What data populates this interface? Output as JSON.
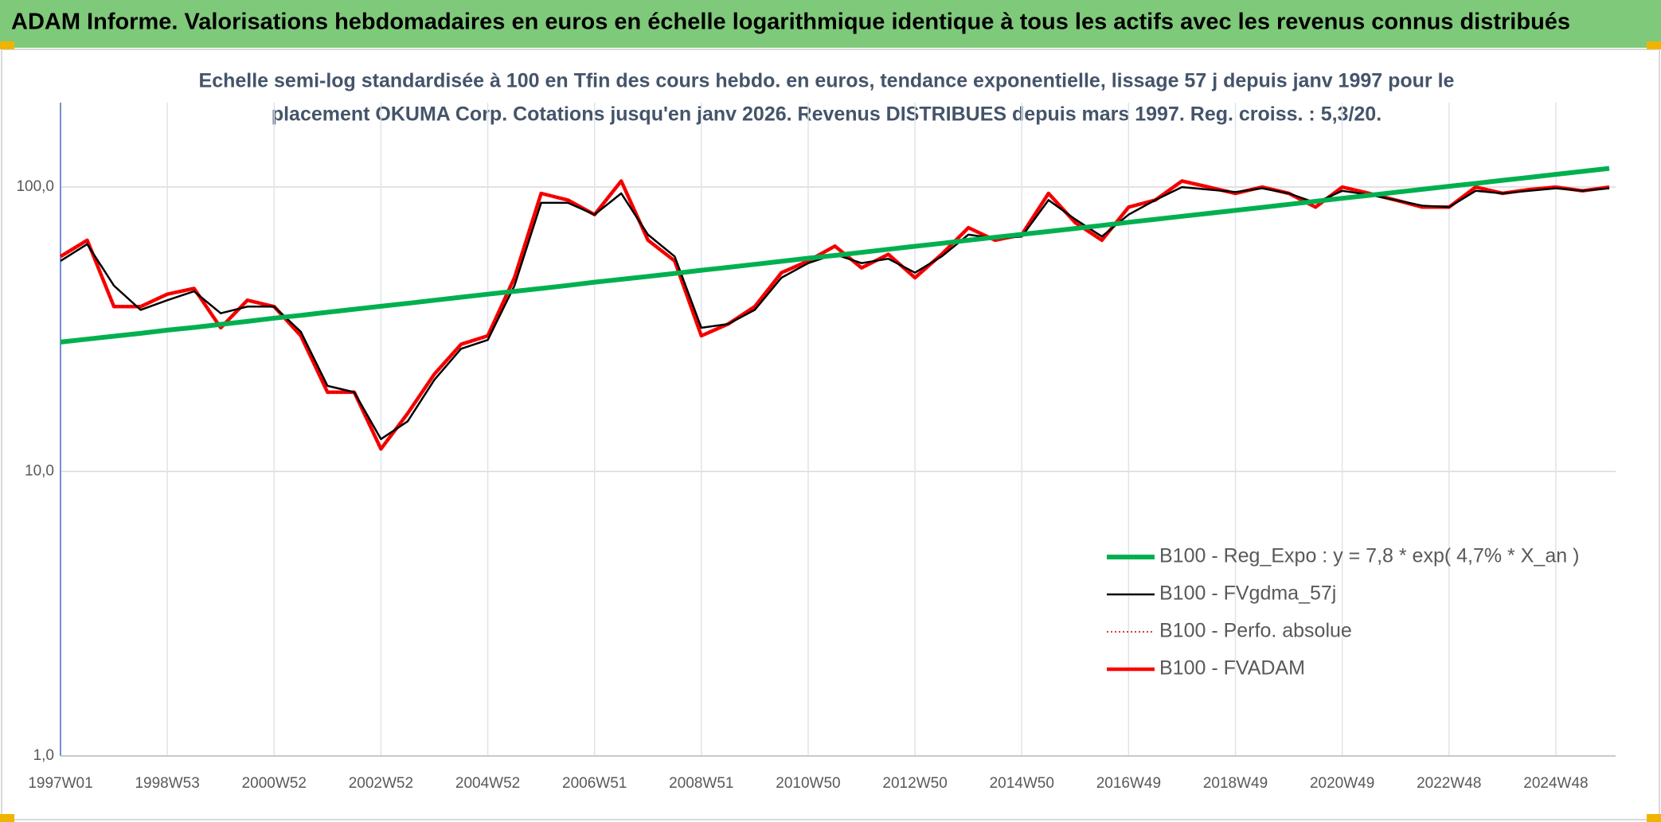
{
  "chart_data": {
    "type": "line",
    "title": "ADAM Informe. Valorisations hebdomadaires en euros en échelle logarithmique identique à tous les actifs avec les revenus connus distribués",
    "subtitle": [
      "Echelle semi-log standardisée à 100 en Tfin des cours hebdo. en euros, tendance exponentielle, lissage 57 j depuis janv 1997 pour le",
      "placement OKUMA Corp. Cotations jusqu'en janv 2026. Revenus DISTRIBUES depuis mars 1997. Reg. croiss. : 5,3/20."
    ],
    "categories": [
      "1997W01",
      null,
      null,
      null,
      "1998W53",
      null,
      null,
      null,
      "2000W52",
      null,
      null,
      null,
      "2002W52",
      null,
      null,
      null,
      "2004W52",
      null,
      null,
      null,
      "2006W51",
      null,
      null,
      null,
      "2008W51",
      null,
      null,
      null,
      "2010W50",
      null,
      null,
      null,
      "2012W50",
      null,
      null,
      null,
      "2014W50",
      null,
      null,
      null,
      "2016W49",
      null,
      null,
      null,
      "2018W49",
      null,
      null,
      null,
      "2020W49",
      null,
      null,
      null,
      "2022W48",
      null,
      null,
      null,
      "2024W48",
      null,
      null
    ],
    "log_scale": true,
    "grid": true,
    "legend": "lower right",
    "ylim": [
      1,
      198
    ],
    "yticks": [
      {
        "value": 1,
        "label": "1,0"
      },
      {
        "value": 10,
        "label": "10,0"
      },
      {
        "value": 100,
        "label": "100,0"
      }
    ],
    "series": [
      {
        "name": "B100 - Reg_Expo : y = 7,8 * exp( 4,7% *  X_an )",
        "color": "#00b050",
        "line_width": 6,
        "style": "solid",
        "values": [
          28.5,
          29.2,
          29.9,
          30.6,
          31.4,
          32.1,
          32.9,
          33.7,
          34.6,
          35.4,
          36.3,
          37.2,
          38.1,
          39.0,
          40.0,
          41.0,
          42.0,
          43.0,
          44.0,
          45.1,
          46.3,
          47.4,
          48.5,
          49.7,
          51.0,
          52.2,
          53.5,
          54.8,
          56.2,
          57.5,
          58.9,
          60.4,
          61.9,
          63.4,
          65.0,
          66.6,
          68.2,
          69.8,
          71.5,
          73.3,
          75.2,
          77.0,
          78.9,
          80.8,
          82.8,
          84.8,
          86.9,
          89.1,
          91.3,
          93.5,
          95.8,
          98.2,
          100.6,
          103.0,
          105.6,
          108.1,
          110.8,
          113.5,
          116.3
        ]
      },
      {
        "name": "B100 - FVgdma_57j",
        "color": "#000000",
        "line_width": 2.5,
        "style": "solid",
        "values": [
          55,
          63,
          45,
          37,
          40,
          43,
          36,
          38,
          38,
          31,
          20,
          19,
          13,
          15,
          21,
          27,
          29,
          45,
          88,
          88,
          80,
          95,
          68,
          57,
          32,
          33,
          37,
          48,
          54,
          58,
          54,
          56,
          50,
          57,
          68,
          66,
          67,
          90,
          77,
          67,
          80,
          90,
          100,
          98,
          96,
          99,
          95,
          88,
          97,
          94,
          90,
          86,
          85,
          97,
          95,
          97,
          99,
          97,
          99
        ]
      },
      {
        "name": "B100 - Perfo. absolue",
        "color": "#c00000",
        "line_width": 1.5,
        "style": "dotted",
        "values": [
          57,
          65,
          38,
          38,
          42,
          44,
          32,
          40,
          38,
          30,
          19,
          19,
          12,
          16,
          22,
          28,
          30,
          48,
          95,
          90,
          80,
          105,
          65,
          55,
          30,
          33,
          38,
          50,
          55,
          62,
          52,
          58,
          48,
          58,
          72,
          65,
          68,
          95,
          75,
          65,
          85,
          90,
          105,
          100,
          95,
          100,
          95,
          85,
          100,
          95,
          90,
          85,
          85,
          100,
          95,
          98,
          100,
          97,
          100
        ]
      },
      {
        "name": "B100 - FVADAM",
        "color": "#ff0000",
        "line_width": 4.5,
        "style": "solid",
        "values": [
          57,
          65,
          38,
          38,
          42,
          44,
          32,
          40,
          38,
          30,
          19,
          19,
          12,
          16,
          22,
          28,
          30,
          48,
          95,
          90,
          80,
          105,
          65,
          55,
          30,
          33,
          38,
          50,
          55,
          62,
          52,
          58,
          48,
          58,
          72,
          65,
          68,
          95,
          75,
          65,
          85,
          90,
          105,
          100,
          95,
          100,
          95,
          85,
          100,
          95,
          90,
          85,
          85,
          100,
          95,
          98,
          100,
          97,
          100
        ]
      }
    ]
  }
}
